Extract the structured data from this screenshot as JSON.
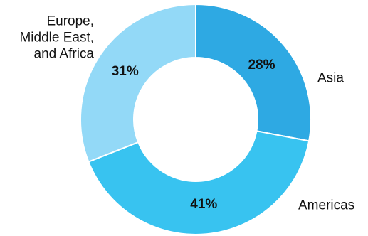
{
  "chart_data": {
    "type": "pie",
    "donut": true,
    "categories": [
      "Asia",
      "Americas",
      "Europe, Middle East, and Africa"
    ],
    "values": [
      28,
      41,
      31
    ],
    "value_labels": [
      "28%",
      "41%",
      "31%"
    ],
    "category_label_lines": [
      [
        "Asia"
      ],
      [
        "Americas"
      ],
      [
        "Europe,",
        "Middle East,",
        "and Africa"
      ]
    ],
    "colors": [
      "#2ea9e3",
      "#38c3f0",
      "#93d9f7"
    ],
    "legend": "none",
    "title": ""
  }
}
